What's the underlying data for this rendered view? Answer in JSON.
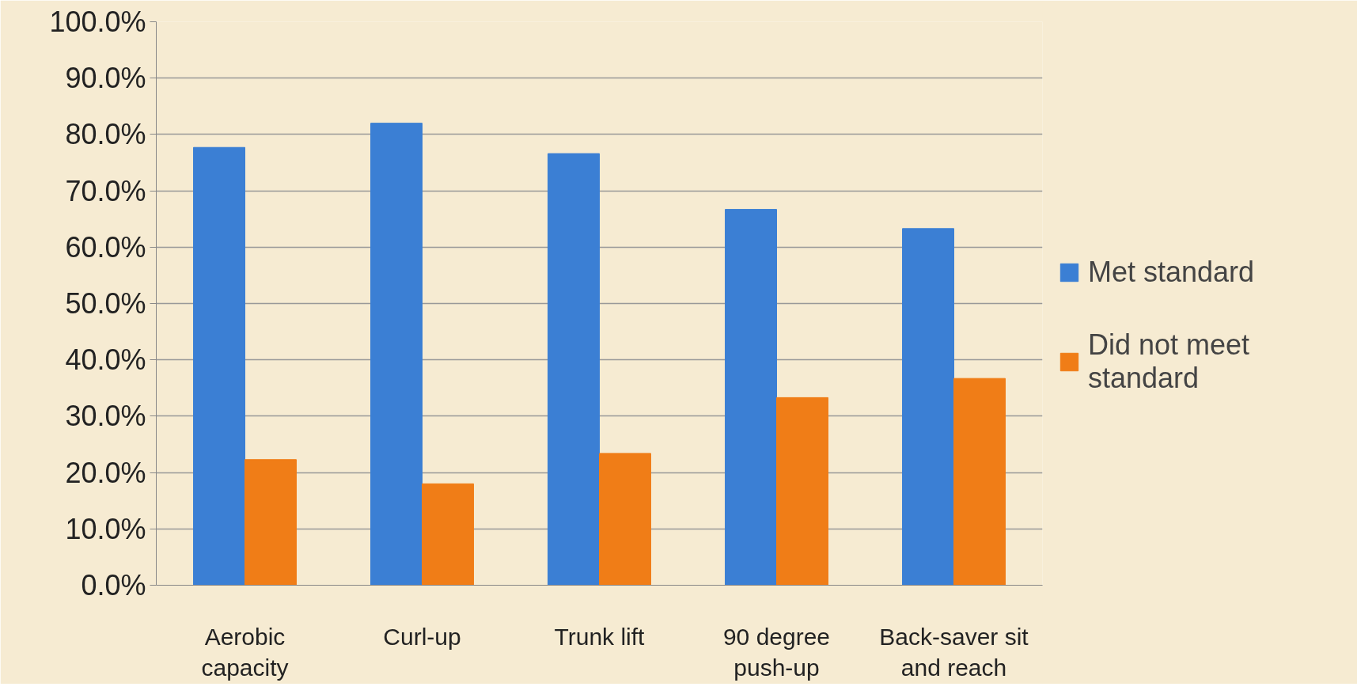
{
  "chart_data": {
    "type": "bar",
    "categories": [
      "Aerobic capacity",
      "Curl-up",
      "Trunk lift",
      "90 degree push-up",
      "Back-saver sit and reach"
    ],
    "series": [
      {
        "name": "Met standard",
        "color": "#3b7fd4",
        "values": [
          77.7,
          82.0,
          76.6,
          66.7,
          63.3
        ]
      },
      {
        "name": "Did not meet standard",
        "color": "#f07d17",
        "values": [
          22.3,
          18.0,
          23.4,
          33.3,
          36.7
        ]
      }
    ],
    "ylim": [
      0,
      100
    ],
    "yticks": [
      {
        "value": 0,
        "label": "0.0%"
      },
      {
        "value": 10,
        "label": "10.0%"
      },
      {
        "value": 20,
        "label": "20.0%"
      },
      {
        "value": 30,
        "label": "30.0%"
      },
      {
        "value": 40,
        "label": "40.0%"
      },
      {
        "value": 50,
        "label": "50.0%"
      },
      {
        "value": 60,
        "label": "60.0%"
      },
      {
        "value": 70,
        "label": "70.0%"
      },
      {
        "value": 80,
        "label": "80.0%"
      },
      {
        "value": 90,
        "label": "90.0%"
      },
      {
        "value": 100,
        "label": "100.0%"
      }
    ],
    "grid": "y",
    "legend": "right"
  }
}
